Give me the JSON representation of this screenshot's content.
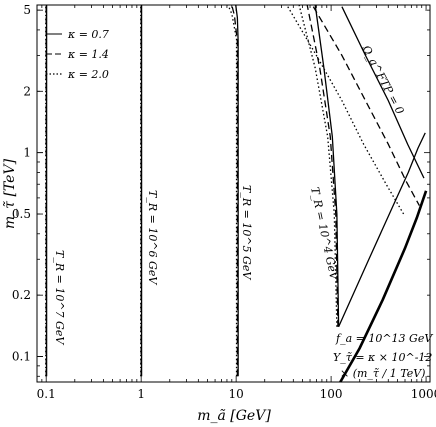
{
  "chart_data": {
    "type": "line",
    "title": "",
    "xlabel": "m_ã [GeV]",
    "ylabel": "m_τ̃ [TeV]",
    "x_scale": "log",
    "y_scale": "log",
    "xlim": [
      0.08,
      1100
    ],
    "ylim": [
      0.075,
      5.3
    ],
    "x_ticks": [
      0.1,
      1,
      10,
      100,
      1000
    ],
    "x_tick_labels": [
      "0.1",
      "1",
      "10",
      "100",
      "1000"
    ],
    "y_ticks": [
      0.1,
      0.2,
      0.5,
      1,
      2,
      5
    ],
    "y_tick_labels": [
      "0.1",
      "0.2",
      "0.5",
      "1",
      "2",
      "5"
    ],
    "legend": {
      "position": "top-left",
      "entries": [
        {
          "label": "κ = 0.7",
          "style": "solid"
        },
        {
          "label": "κ = 1.4",
          "style": "dashed"
        },
        {
          "label": "κ = 2.0",
          "style": "dotted"
        }
      ]
    },
    "series": [
      {
        "name": "T_R = 10^7 GeV, κ=0.7",
        "style": "solid",
        "x": [
          0.101,
          0.101
        ],
        "y": [
          0.08,
          5.3
        ]
      },
      {
        "name": "T_R = 10^7 GeV, κ=1.4",
        "style": "dashed",
        "x": [
          0.1,
          0.1
        ],
        "y": [
          0.08,
          5.3
        ]
      },
      {
        "name": "T_R = 10^7 GeV, κ=2.0",
        "style": "dotted",
        "x": [
          0.099,
          0.099
        ],
        "y": [
          0.08,
          5.3
        ]
      },
      {
        "name": "T_R = 10^6 GeV, κ=0.7",
        "style": "solid",
        "x": [
          1.01,
          1.01
        ],
        "y": [
          0.08,
          5.3
        ]
      },
      {
        "name": "T_R = 10^6 GeV, κ=1.4",
        "style": "dashed",
        "x": [
          1.0,
          1.0
        ],
        "y": [
          0.08,
          5.3
        ]
      },
      {
        "name": "T_R = 10^6 GeV, κ=2.0",
        "style": "dotted",
        "x": [
          0.99,
          0.99
        ],
        "y": [
          0.08,
          5.3
        ]
      },
      {
        "name": "T_R = 10^5 GeV, κ=0.7",
        "style": "solid",
        "x": [
          10.5,
          10.5,
          10.3,
          9.9
        ],
        "y": [
          0.08,
          3.5,
          4.6,
          5.3
        ]
      },
      {
        "name": "T_R = 10^5 GeV, κ=1.4",
        "style": "dashed",
        "x": [
          10.3,
          10.3,
          9.6,
          9.0
        ],
        "y": [
          0.08,
          3.5,
          4.7,
          5.3
        ]
      },
      {
        "name": "T_R = 10^5 GeV, κ=2.0",
        "style": "dotted",
        "x": [
          10.1,
          10.1,
          9.0,
          8.2
        ],
        "y": [
          0.08,
          3.6,
          4.8,
          5.3
        ]
      },
      {
        "name": "T_R = 10^4 GeV, κ=0.7",
        "style": "solid",
        "x": [
          120,
          115,
          103,
          84,
          68
        ],
        "y": [
          0.14,
          0.5,
          1.2,
          2.6,
          5.3
        ]
      },
      {
        "name": "T_R = 10^4 GeV, κ=1.4",
        "style": "dashed",
        "x": [
          118,
          112,
          98,
          76,
          56
        ],
        "y": [
          0.14,
          0.5,
          1.2,
          2.6,
          5.3
        ]
      },
      {
        "name": "T_R = 10^4 GeV, κ=2.0",
        "style": "dotted",
        "x": [
          115,
          108,
          92,
          68,
          46
        ],
        "y": [
          0.14,
          0.5,
          1.2,
          2.6,
          5.3
        ]
      },
      {
        "name": "T_R = 10^4 GeV outer, κ=0.7",
        "style": "solid",
        "x": [
          120,
          250,
          450,
          650,
          820,
          980
        ],
        "y": [
          0.14,
          0.3,
          0.55,
          0.8,
          1.05,
          1.25
        ]
      },
      {
        "name": "Ω_a^FTP = 0, κ=0.7",
        "style": "solid",
        "x": [
          130,
          230,
          400,
          640,
          950
        ],
        "y": [
          5.2,
          3.0,
          1.8,
          1.1,
          0.75
        ]
      },
      {
        "name": "Ω_a^FTP = 0, κ=1.4",
        "style": "dashed",
        "x": [
          65,
          130,
          230,
          400,
          620,
          850
        ],
        "y": [
          5.2,
          3.0,
          1.8,
          1.1,
          0.72,
          0.55
        ]
      },
      {
        "name": "Ω_a^FTP = 0, κ=2.0",
        "style": "dotted",
        "x": [
          35,
          70,
          130,
          220,
          380,
          580
        ],
        "y": [
          5.2,
          3.0,
          1.8,
          1.1,
          0.7,
          0.5
        ]
      },
      {
        "name": "lower boundary",
        "style": "thick",
        "x": [
          125,
          200,
          350,
          600,
          800,
          1000
        ],
        "y": [
          0.075,
          0.11,
          0.19,
          0.34,
          0.48,
          0.65
        ]
      }
    ],
    "annotations": {
      "tr7": "T_R = 10^7 GeV",
      "tr6": "T_R = 10^6 GeV",
      "tr5": "T_R = 10^5 GeV",
      "tr4": "T_R = 10^4 GeV",
      "omega": "Ω_a^FTP = 0",
      "fa": "f_a = 10^13 GeV",
      "ytau1": "Y_τ̃ = κ × 10^-12",
      "ytau2": "× (m_τ̃ / 1 TeV)"
    }
  }
}
